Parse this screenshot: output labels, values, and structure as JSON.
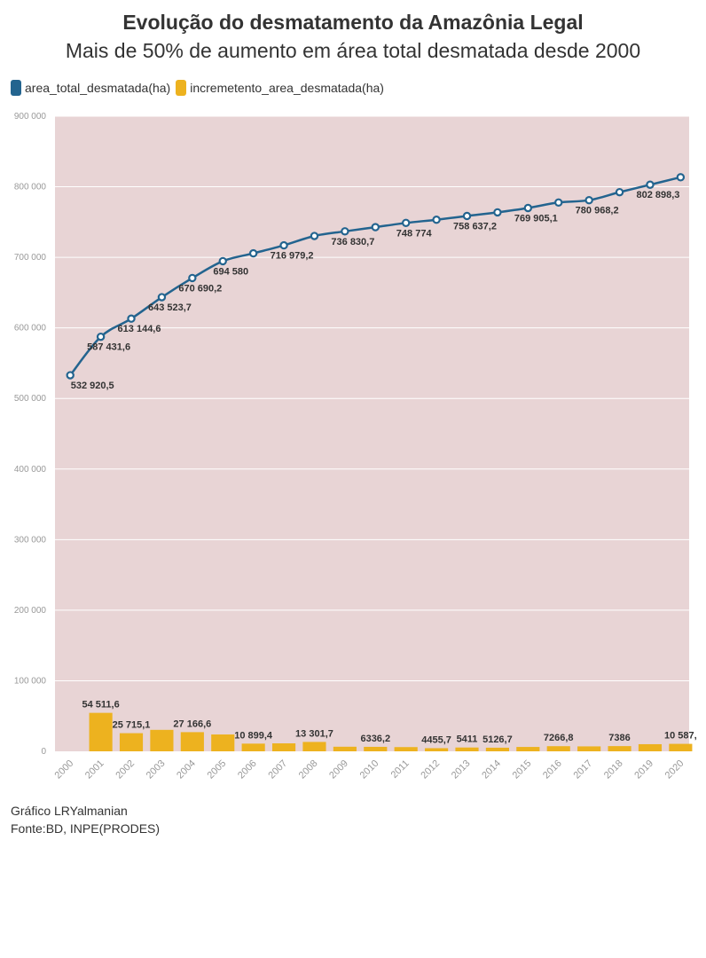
{
  "title": "Evolução do desmatamento da Amazônia Legal",
  "subtitle": "Mais de 50% de aumento em área total desmatada desde 2000",
  "colors": {
    "line": "#23648f",
    "bar": "#edb21f",
    "plot_bg": "#e8d4d5",
    "grid": "#ffffff"
  },
  "footer": {
    "credit": "Gráfico LRYalmanian",
    "source": "Fonte:BD, INPE(PRODES)"
  },
  "chart_data": {
    "type": "bar+line",
    "categories": [
      "2000",
      "2001",
      "2002",
      "2003",
      "2004",
      "2005",
      "2006",
      "2007",
      "2008",
      "2009",
      "2010",
      "2011",
      "2012",
      "2013",
      "2014",
      "2015",
      "2016",
      "2017",
      "2018",
      "2019",
      "2020"
    ],
    "ylim": [
      0,
      900000
    ],
    "y_ticks": [
      0,
      100000,
      200000,
      300000,
      400000,
      500000,
      600000,
      700000,
      800000,
      900000
    ],
    "y_tick_labels": [
      "0",
      "100 000",
      "200 000",
      "300 000",
      "400 000",
      "500 000",
      "600 000",
      "700 000",
      "800 000",
      "900 000"
    ],
    "grid": true,
    "legend_position": "top-left",
    "series": [
      {
        "name": "area_total_desmatada(ha)",
        "kind": "line",
        "values": [
          532920.5,
          587431.6,
          613144.6,
          643523.7,
          670690.2,
          694580,
          705679,
          716979.2,
          730280,
          736830.7,
          742780,
          748774,
          753300,
          758637.2,
          763750,
          769905.1,
          777700,
          780968.2,
          792350,
          802898.3,
          813500
        ],
        "labels": [
          "532 920,5",
          "587 431,6",
          "613 144,6",
          "643 523,7",
          "670 690,2",
          "694 580",
          "",
          "716 979,2",
          "",
          "736 830,7",
          "",
          "748 774",
          "",
          "758 637,2",
          "",
          "769 905,1",
          "",
          "780 968,2",
          "",
          "802 898,3",
          ""
        ]
      },
      {
        "name": "incremetento_area_desmatada(ha)",
        "kind": "bar",
        "values": [
          0,
          54511.6,
          25715.1,
          30400,
          27166.6,
          23900,
          10899.4,
          11300,
          13301.7,
          6500,
          6336.2,
          6000,
          4455.7,
          5411,
          5126.7,
          6200,
          7266.8,
          7000,
          7386,
          10100,
          10587
        ],
        "labels": [
          "",
          "54 511,6",
          "25 715,1",
          "",
          "27 166,6",
          "",
          "10 899,4",
          "",
          "13 301,7",
          "",
          "6336,2",
          "",
          "4455,7",
          "5411",
          "5126,7",
          "",
          "7266,8",
          "",
          "7386",
          "",
          "10 587,"
        ]
      }
    ]
  }
}
